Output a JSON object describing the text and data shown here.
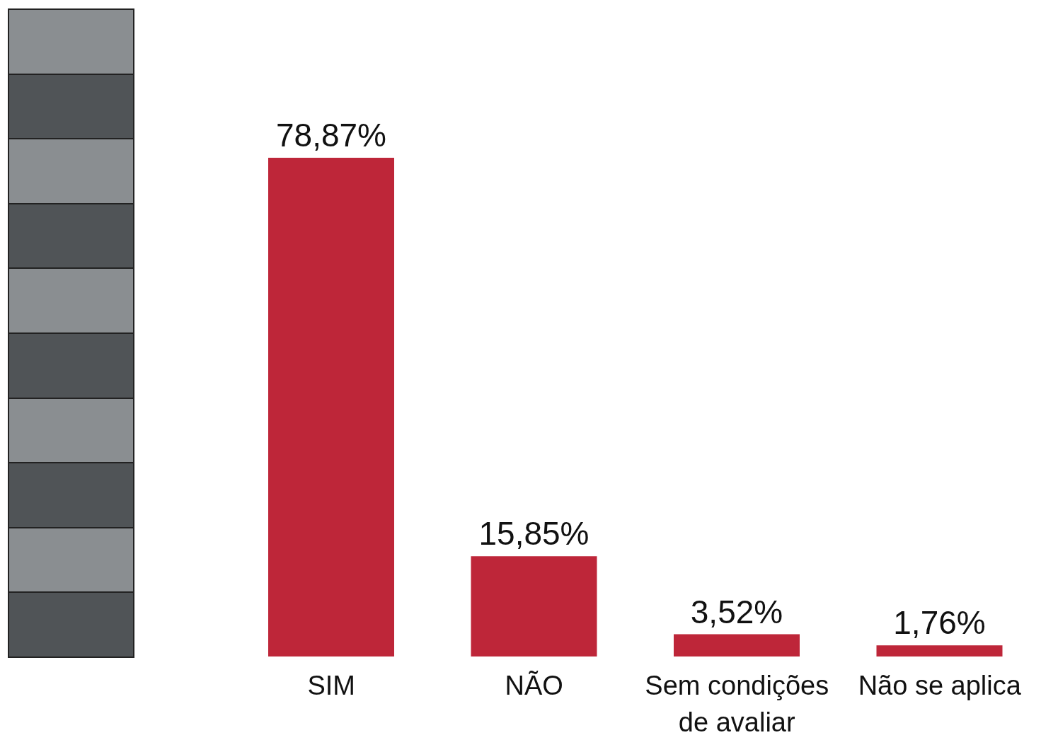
{
  "chart_data": {
    "type": "bar",
    "categories": [
      "SIM",
      "NÃO",
      "Sem condições de avaliar",
      "Não se aplica"
    ],
    "values": [
      78.87,
      15.85,
      3.52,
      1.76
    ],
    "value_labels": [
      "78,87%",
      "15,85%",
      "3,52%",
      "1,76%"
    ],
    "color": "#be2639"
  }
}
